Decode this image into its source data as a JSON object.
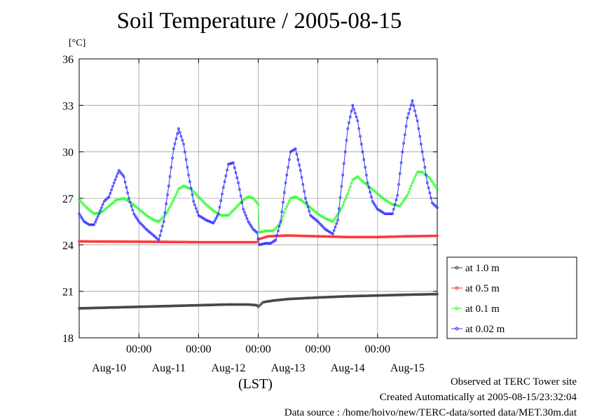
{
  "title": "Soil Temperature / 2005-08-15",
  "y_unit": "[°C]",
  "x_unit": "(LST)",
  "footer": {
    "line1": "Observed at TERC Tower site",
    "line2": "Created Automatically at 2005-08-15/23:32:04",
    "line3": "Data source : /home/hoivo/new/TERC-data/sorted  data/MET.30m.dat"
  },
  "chart_data": {
    "type": "line",
    "x_start": "2005-08-09T15:00",
    "x_end": "2005-08-15T24:00",
    "ylim": [
      18,
      36
    ],
    "yticks": [
      18,
      21,
      24,
      27,
      30,
      33,
      36
    ],
    "xtick_times": [
      "00:00",
      "00:00",
      "00:00",
      "00:00",
      "00:00"
    ],
    "xtick_positions_hours": [
      24,
      48,
      72,
      96,
      120
    ],
    "date_labels": [
      "Aug-10",
      "Aug-11",
      "Aug-12",
      "Aug-13",
      "Aug-14",
      "Aug-15"
    ],
    "date_label_hours": [
      12,
      36,
      60,
      84,
      108,
      132
    ],
    "grid": true,
    "legend_position": "right",
    "series": [
      {
        "name": "at 1.0 m",
        "color": "#404040",
        "points": [
          [
            0,
            19.9
          ],
          [
            12,
            19.95
          ],
          [
            24,
            20.0
          ],
          [
            36,
            20.05
          ],
          [
            48,
            20.1
          ],
          [
            60,
            20.15
          ],
          [
            68,
            20.15
          ],
          [
            71.5,
            20.1
          ],
          [
            72,
            20.0
          ],
          [
            74,
            20.3
          ],
          [
            78,
            20.4
          ],
          [
            84,
            20.5
          ],
          [
            96,
            20.6
          ],
          [
            108,
            20.68
          ],
          [
            120,
            20.73
          ],
          [
            132,
            20.78
          ],
          [
            144,
            20.82
          ]
        ]
      },
      {
        "name": "at 0.5 m",
        "color": "#ff3333",
        "points": [
          [
            0,
            24.22
          ],
          [
            24,
            24.2
          ],
          [
            48,
            24.17
          ],
          [
            60,
            24.17
          ],
          [
            71.5,
            24.17
          ],
          [
            72,
            24.35
          ],
          [
            76,
            24.55
          ],
          [
            84,
            24.6
          ],
          [
            96,
            24.55
          ],
          [
            108,
            24.5
          ],
          [
            120,
            24.5
          ],
          [
            132,
            24.55
          ],
          [
            144,
            24.58
          ]
        ]
      },
      {
        "name": "at 0.1 m",
        "color": "#33ff33",
        "points": [
          [
            0,
            26.9
          ],
          [
            3,
            26.4
          ],
          [
            6,
            26.0
          ],
          [
            9,
            26.1
          ],
          [
            12,
            26.5
          ],
          [
            15,
            26.9
          ],
          [
            18,
            27.0
          ],
          [
            21,
            26.7
          ],
          [
            24,
            26.3
          ],
          [
            27,
            25.9
          ],
          [
            30,
            25.6
          ],
          [
            32,
            25.5
          ],
          [
            35,
            26.0
          ],
          [
            38,
            26.9
          ],
          [
            40,
            27.6
          ],
          [
            42,
            27.8
          ],
          [
            45,
            27.6
          ],
          [
            48,
            27.1
          ],
          [
            51,
            26.6
          ],
          [
            54,
            26.2
          ],
          [
            57,
            25.9
          ],
          [
            60,
            25.9
          ],
          [
            63,
            26.4
          ],
          [
            66,
            26.9
          ],
          [
            68,
            27.1
          ],
          [
            70,
            27.0
          ],
          [
            72,
            26.6
          ],
          [
            72.5,
            24.8
          ],
          [
            75,
            24.9
          ],
          [
            78,
            24.9
          ],
          [
            81,
            25.4
          ],
          [
            83,
            26.3
          ],
          [
            85,
            27.0
          ],
          [
            87,
            27.1
          ],
          [
            90,
            26.8
          ],
          [
            93,
            26.4
          ],
          [
            96,
            26.0
          ],
          [
            99,
            25.7
          ],
          [
            102,
            25.5
          ],
          [
            105,
            26.2
          ],
          [
            108,
            27.3
          ],
          [
            110,
            28.2
          ],
          [
            112,
            28.4
          ],
          [
            114,
            28.1
          ],
          [
            117,
            27.7
          ],
          [
            120,
            27.3
          ],
          [
            123,
            26.9
          ],
          [
            126,
            26.6
          ],
          [
            129,
            26.5
          ],
          [
            132,
            27.2
          ],
          [
            134,
            28.0
          ],
          [
            136,
            28.7
          ],
          [
            138,
            28.7
          ],
          [
            141,
            28.3
          ],
          [
            144,
            27.6
          ]
        ]
      },
      {
        "name": "at 0.02 m",
        "color": "#3333ff",
        "points": [
          [
            0,
            26.0
          ],
          [
            2,
            25.5
          ],
          [
            4,
            25.3
          ],
          [
            6,
            25.3
          ],
          [
            8,
            26.0
          ],
          [
            10,
            26.8
          ],
          [
            12,
            27.1
          ],
          [
            14,
            28.0
          ],
          [
            16,
            28.8
          ],
          [
            18,
            28.4
          ],
          [
            20,
            27.0
          ],
          [
            22,
            26.0
          ],
          [
            24,
            25.5
          ],
          [
            27,
            25.0
          ],
          [
            30,
            24.6
          ],
          [
            32,
            24.3
          ],
          [
            34,
            25.5
          ],
          [
            36,
            27.8
          ],
          [
            38,
            30.2
          ],
          [
            40,
            31.5
          ],
          [
            42,
            30.5
          ],
          [
            44,
            28.5
          ],
          [
            46,
            26.8
          ],
          [
            48,
            25.9
          ],
          [
            51,
            25.6
          ],
          [
            54,
            25.4
          ],
          [
            56,
            26.0
          ],
          [
            58,
            27.7
          ],
          [
            60,
            29.2
          ],
          [
            62,
            29.3
          ],
          [
            64,
            28.0
          ],
          [
            66,
            26.3
          ],
          [
            68,
            25.5
          ],
          [
            70,
            25.0
          ],
          [
            71.5,
            24.8
          ],
          [
            72.5,
            24.0
          ],
          [
            75,
            24.1
          ],
          [
            77,
            24.1
          ],
          [
            79,
            24.3
          ],
          [
            81,
            25.5
          ],
          [
            83,
            28.0
          ],
          [
            85,
            30.0
          ],
          [
            87,
            30.2
          ],
          [
            89,
            28.8
          ],
          [
            91,
            27.0
          ],
          [
            93,
            25.9
          ],
          [
            96,
            25.5
          ],
          [
            99,
            25.0
          ],
          [
            102,
            24.7
          ],
          [
            104,
            25.6
          ],
          [
            106,
            28.5
          ],
          [
            108,
            31.5
          ],
          [
            110,
            33.0
          ],
          [
            112,
            32.0
          ],
          [
            114,
            30.0
          ],
          [
            116,
            28.0
          ],
          [
            118,
            26.8
          ],
          [
            120,
            26.3
          ],
          [
            123,
            26.0
          ],
          [
            126,
            26.0
          ],
          [
            128,
            27.2
          ],
          [
            130,
            30.0
          ],
          [
            132,
            32.2
          ],
          [
            134,
            33.3
          ],
          [
            136,
            32.0
          ],
          [
            138,
            30.0
          ],
          [
            140,
            28.0
          ],
          [
            142,
            26.7
          ],
          [
            144,
            26.4
          ]
        ]
      }
    ]
  }
}
